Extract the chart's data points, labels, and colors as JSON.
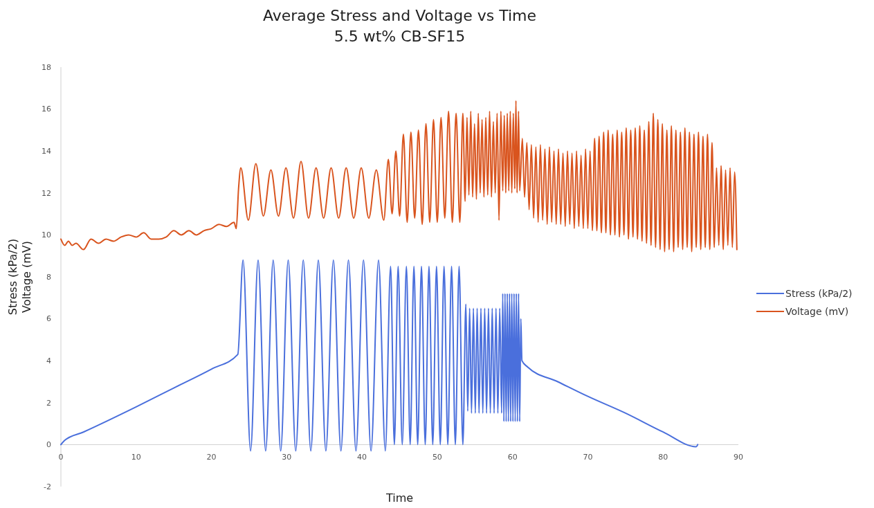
{
  "chart_data": {
    "type": "line",
    "title": "Average Stress and Voltage vs Time",
    "subtitle": "5.5 wt% CB-SF15",
    "xlabel": "Time",
    "ylabel": "Stress (kPa/2)\nVoltage (mV)",
    "xlim": [
      0,
      90
    ],
    "xticks": [
      0,
      10,
      20,
      30,
      40,
      50,
      60,
      70,
      80,
      90
    ],
    "ylim": [
      -2,
      18
    ],
    "yticks": [
      -2,
      0,
      2,
      4,
      6,
      8,
      10,
      12,
      14,
      16,
      18
    ],
    "grid": false,
    "legend": "right",
    "marker": "none",
    "line_style": "solid",
    "series": [
      {
        "name": "Stress (kPa/2)",
        "color": "#4a6fdc",
        "x": [
          0,
          0.5,
          3,
          10,
          15,
          20,
          23.5,
          24.2,
          25.2,
          26.2,
          27.2,
          28.2,
          29.2,
          30.2,
          31.2,
          32.2,
          33.2,
          34.2,
          35.2,
          36.2,
          37.2,
          38.2,
          39.2,
          40.2,
          41.2,
          42.2,
          43.1,
          43.8,
          44.3,
          44.8,
          45.35,
          45.9,
          46.4,
          46.9,
          47.4,
          47.9,
          48.4,
          48.9,
          49.4,
          49.9,
          50.4,
          50.9,
          51.4,
          51.9,
          52.4,
          52.9,
          53.4,
          53.8,
          54.05,
          54.3,
          54.55,
          54.8,
          55.05,
          55.3,
          55.55,
          55.8,
          56.05,
          56.3,
          56.55,
          56.8,
          57.05,
          57.3,
          57.55,
          57.8,
          58.05,
          58.3,
          58.55,
          58.7,
          58.85,
          59.0,
          59.15,
          59.3,
          59.45,
          59.6,
          59.75,
          59.9,
          60.05,
          60.2,
          60.35,
          60.5,
          60.65,
          60.8,
          60.95,
          61.1,
          61.25,
          62,
          66,
          70,
          75,
          80,
          84.4,
          84.6
        ],
        "values": [
          0,
          0.2,
          0.6,
          1.8,
          2.7,
          3.6,
          4.3,
          8.8,
          -0.3,
          8.8,
          -0.3,
          8.8,
          -0.3,
          8.8,
          -0.3,
          8.8,
          -0.3,
          8.8,
          -0.3,
          8.8,
          -0.3,
          8.8,
          -0.3,
          8.8,
          -0.3,
          8.8,
          -0.3,
          8.5,
          0,
          8.5,
          0,
          8.5,
          0,
          8.5,
          0,
          8.5,
          0,
          8.5,
          0,
          8.5,
          0,
          8.5,
          0,
          8.5,
          0,
          8.5,
          0,
          6.7,
          1.6,
          6.5,
          1.5,
          6.5,
          1.5,
          6.5,
          1.5,
          6.5,
          1.5,
          6.5,
          1.5,
          6.5,
          1.5,
          6.5,
          1.5,
          6.5,
          1.5,
          6.5,
          1.5,
          7.2,
          1.1,
          7.2,
          1.1,
          7.2,
          1.1,
          7.2,
          1.1,
          7.2,
          1.1,
          7.2,
          1.1,
          7.2,
          1.1,
          7.2,
          1.1,
          6.0,
          4.0,
          3.7,
          3.0,
          2.3,
          1.5,
          0.6,
          -0.1,
          0
        ]
      },
      {
        "name": "Voltage (mV)",
        "color": "#d9541e",
        "x": [
          0,
          0.5,
          1,
          1.5,
          2,
          3,
          4,
          5,
          6,
          7,
          8,
          9,
          10,
          11,
          12,
          13,
          14,
          15,
          16,
          17,
          18,
          19,
          20,
          21,
          22,
          23,
          23.3,
          23.6,
          23.9,
          24.9,
          25.9,
          26.9,
          27.9,
          28.9,
          29.9,
          30.9,
          31.9,
          32.9,
          33.9,
          34.9,
          35.9,
          36.9,
          37.9,
          38.9,
          39.9,
          40.9,
          41.9,
          42.9,
          43.5,
          44.0,
          44.5,
          45.0,
          45.5,
          46.0,
          46.5,
          47.0,
          47.5,
          48.0,
          48.5,
          49.0,
          49.5,
          50.0,
          50.5,
          51.0,
          51.5,
          52.0,
          52.5,
          53.0,
          53.4,
          53.7,
          53.95,
          54.2,
          54.45,
          54.7,
          54.95,
          55.2,
          55.45,
          55.7,
          55.95,
          56.2,
          56.45,
          56.7,
          56.95,
          57.2,
          57.45,
          57.7,
          57.95,
          58.2,
          58.45,
          58.7,
          58.9,
          59.1,
          59.3,
          59.5,
          59.7,
          59.9,
          60.1,
          60.3,
          60.45,
          60.6,
          60.8,
          60.95,
          61.3,
          61.6,
          61.9,
          62.2,
          62.5,
          62.8,
          63.1,
          63.4,
          63.7,
          64.0,
          64.3,
          64.6,
          64.9,
          65.2,
          65.5,
          65.8,
          66.1,
          66.4,
          66.7,
          67.0,
          67.3,
          67.6,
          67.9,
          68.2,
          68.5,
          68.8,
          69.1,
          69.4,
          69.7,
          70.0,
          70.3,
          70.6,
          70.9,
          71.2,
          71.5,
          71.8,
          72.1,
          72.4,
          72.7,
          73.0,
          73.3,
          73.6,
          73.9,
          74.2,
          74.5,
          74.8,
          75.1,
          75.4,
          75.7,
          76.0,
          76.3,
          76.6,
          76.9,
          77.2,
          77.5,
          77.8,
          78.1,
          78.4,
          78.7,
          79.0,
          79.3,
          79.6,
          79.9,
          80.2,
          80.5,
          80.8,
          81.1,
          81.4,
          81.7,
          82.0,
          82.3,
          82.6,
          82.9,
          83.2,
          83.5,
          83.8,
          84.1,
          84.4,
          84.7,
          85.0,
          85.3,
          85.6,
          85.9,
          86.2,
          86.5,
          86.8,
          87.1,
          87.4,
          87.7,
          88.0,
          88.3,
          88.6,
          88.9,
          89.2,
          89.5,
          89.8
        ],
        "values": [
          9.8,
          9.5,
          9.7,
          9.5,
          9.6,
          9.3,
          9.8,
          9.6,
          9.8,
          9.7,
          9.9,
          10.0,
          9.9,
          10.1,
          9.8,
          9.8,
          9.9,
          10.2,
          10.0,
          10.2,
          10.0,
          10.2,
          10.3,
          10.5,
          10.4,
          10.6,
          10.3,
          12.2,
          13.2,
          10.7,
          13.4,
          10.9,
          13.1,
          10.9,
          13.2,
          10.8,
          13.5,
          10.8,
          13.2,
          10.8,
          13.2,
          10.8,
          13.2,
          10.8,
          13.2,
          10.8,
          13.1,
          10.7,
          13.6,
          11.0,
          14.0,
          10.9,
          14.8,
          10.6,
          14.9,
          10.8,
          15.0,
          10.5,
          15.3,
          10.6,
          15.5,
          10.6,
          15.6,
          10.8,
          15.9,
          10.6,
          15.8,
          10.6,
          15.8,
          11.6,
          15.6,
          11.9,
          15.9,
          11.8,
          15.3,
          11.7,
          15.8,
          12.0,
          15.5,
          11.8,
          15.6,
          11.9,
          15.9,
          11.8,
          15.4,
          12.0,
          15.8,
          10.7,
          15.9,
          12.1,
          15.7,
          12.0,
          15.8,
          12.1,
          15.9,
          12.0,
          15.8,
          12.2,
          16.4,
          12.0,
          15.9,
          12.1,
          14.6,
          11.8,
          14.4,
          11.2,
          14.3,
          10.8,
          14.2,
          10.6,
          14.3,
          10.7,
          14.1,
          10.5,
          14.2,
          10.6,
          14.0,
          10.5,
          14.1,
          10.5,
          13.9,
          10.4,
          14.0,
          10.5,
          13.9,
          10.3,
          14.0,
          10.4,
          13.8,
          10.3,
          14.1,
          10.3,
          14.0,
          10.2,
          14.6,
          10.2,
          14.7,
          10.1,
          14.9,
          10.1,
          15.0,
          10.0,
          14.8,
          10.0,
          15.0,
          9.9,
          14.9,
          10.0,
          15.1,
          9.8,
          15.0,
          9.9,
          15.1,
          9.8,
          15.2,
          9.7,
          15.0,
          9.6,
          15.4,
          9.5,
          15.8,
          9.4,
          15.5,
          9.3,
          15.3,
          9.2,
          15.0,
          9.3,
          15.2,
          9.2,
          15.0,
          9.4,
          14.9,
          9.3,
          15.1,
          9.4,
          14.9,
          9.2,
          14.8,
          9.4,
          14.9,
          9.3,
          14.7,
          9.4,
          14.8,
          9.3,
          14.4,
          9.4,
          13.2,
          9.5,
          13.3,
          9.3,
          13.1,
          9.5,
          13.2,
          9.4,
          13.0,
          9.3
        ]
      }
    ]
  }
}
